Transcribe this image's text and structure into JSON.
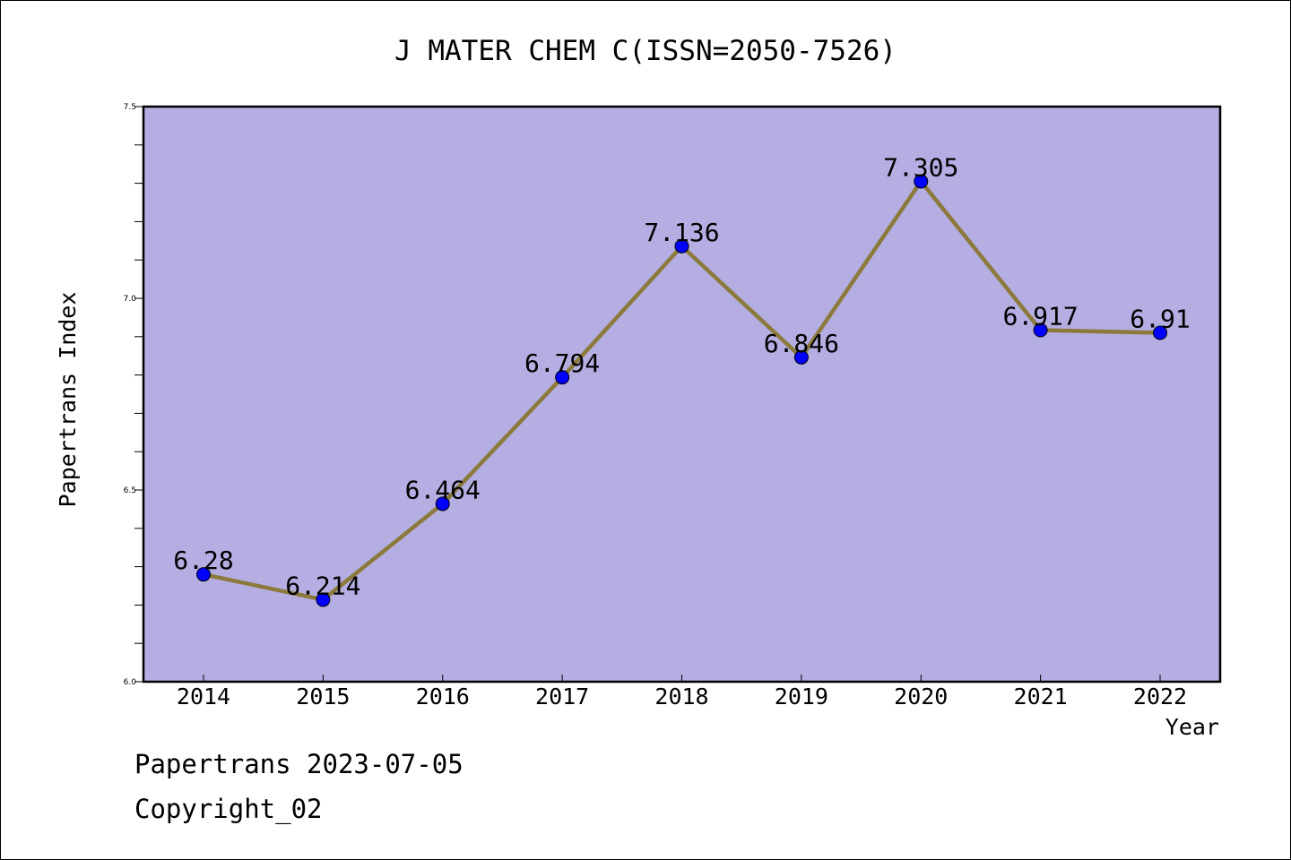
{
  "chart_data": {
    "type": "line",
    "title": "J MATER CHEM C(ISSN=2050-7526)",
    "xlabel": "Year",
    "ylabel": "Papertrans Index",
    "categories": [
      "2014",
      "2015",
      "2016",
      "2017",
      "2018",
      "2019",
      "2020",
      "2021",
      "2022"
    ],
    "series": [
      {
        "values": [
          6.28,
          6.214,
          6.464,
          6.794,
          7.136,
          6.846,
          7.305,
          6.917,
          6.91
        ]
      }
    ],
    "data_labels": [
      "6.28",
      "6.214",
      "6.464",
      "6.794",
      "7.136",
      "6.846",
      "7.305",
      "6.917",
      "6.91"
    ],
    "ylim": [
      6.0,
      7.5
    ],
    "yticks": [
      "6.0",
      "6.5",
      "7.0",
      "7.5"
    ],
    "y_minor_step": 0.1,
    "grid": false,
    "colors": {
      "plot_background": "#b4aee2",
      "line": "#8b7a3c",
      "marker": "#0000ff"
    }
  },
  "footer": {
    "line1": "Papertrans 2023-07-05",
    "line2": "Copyright_02"
  }
}
